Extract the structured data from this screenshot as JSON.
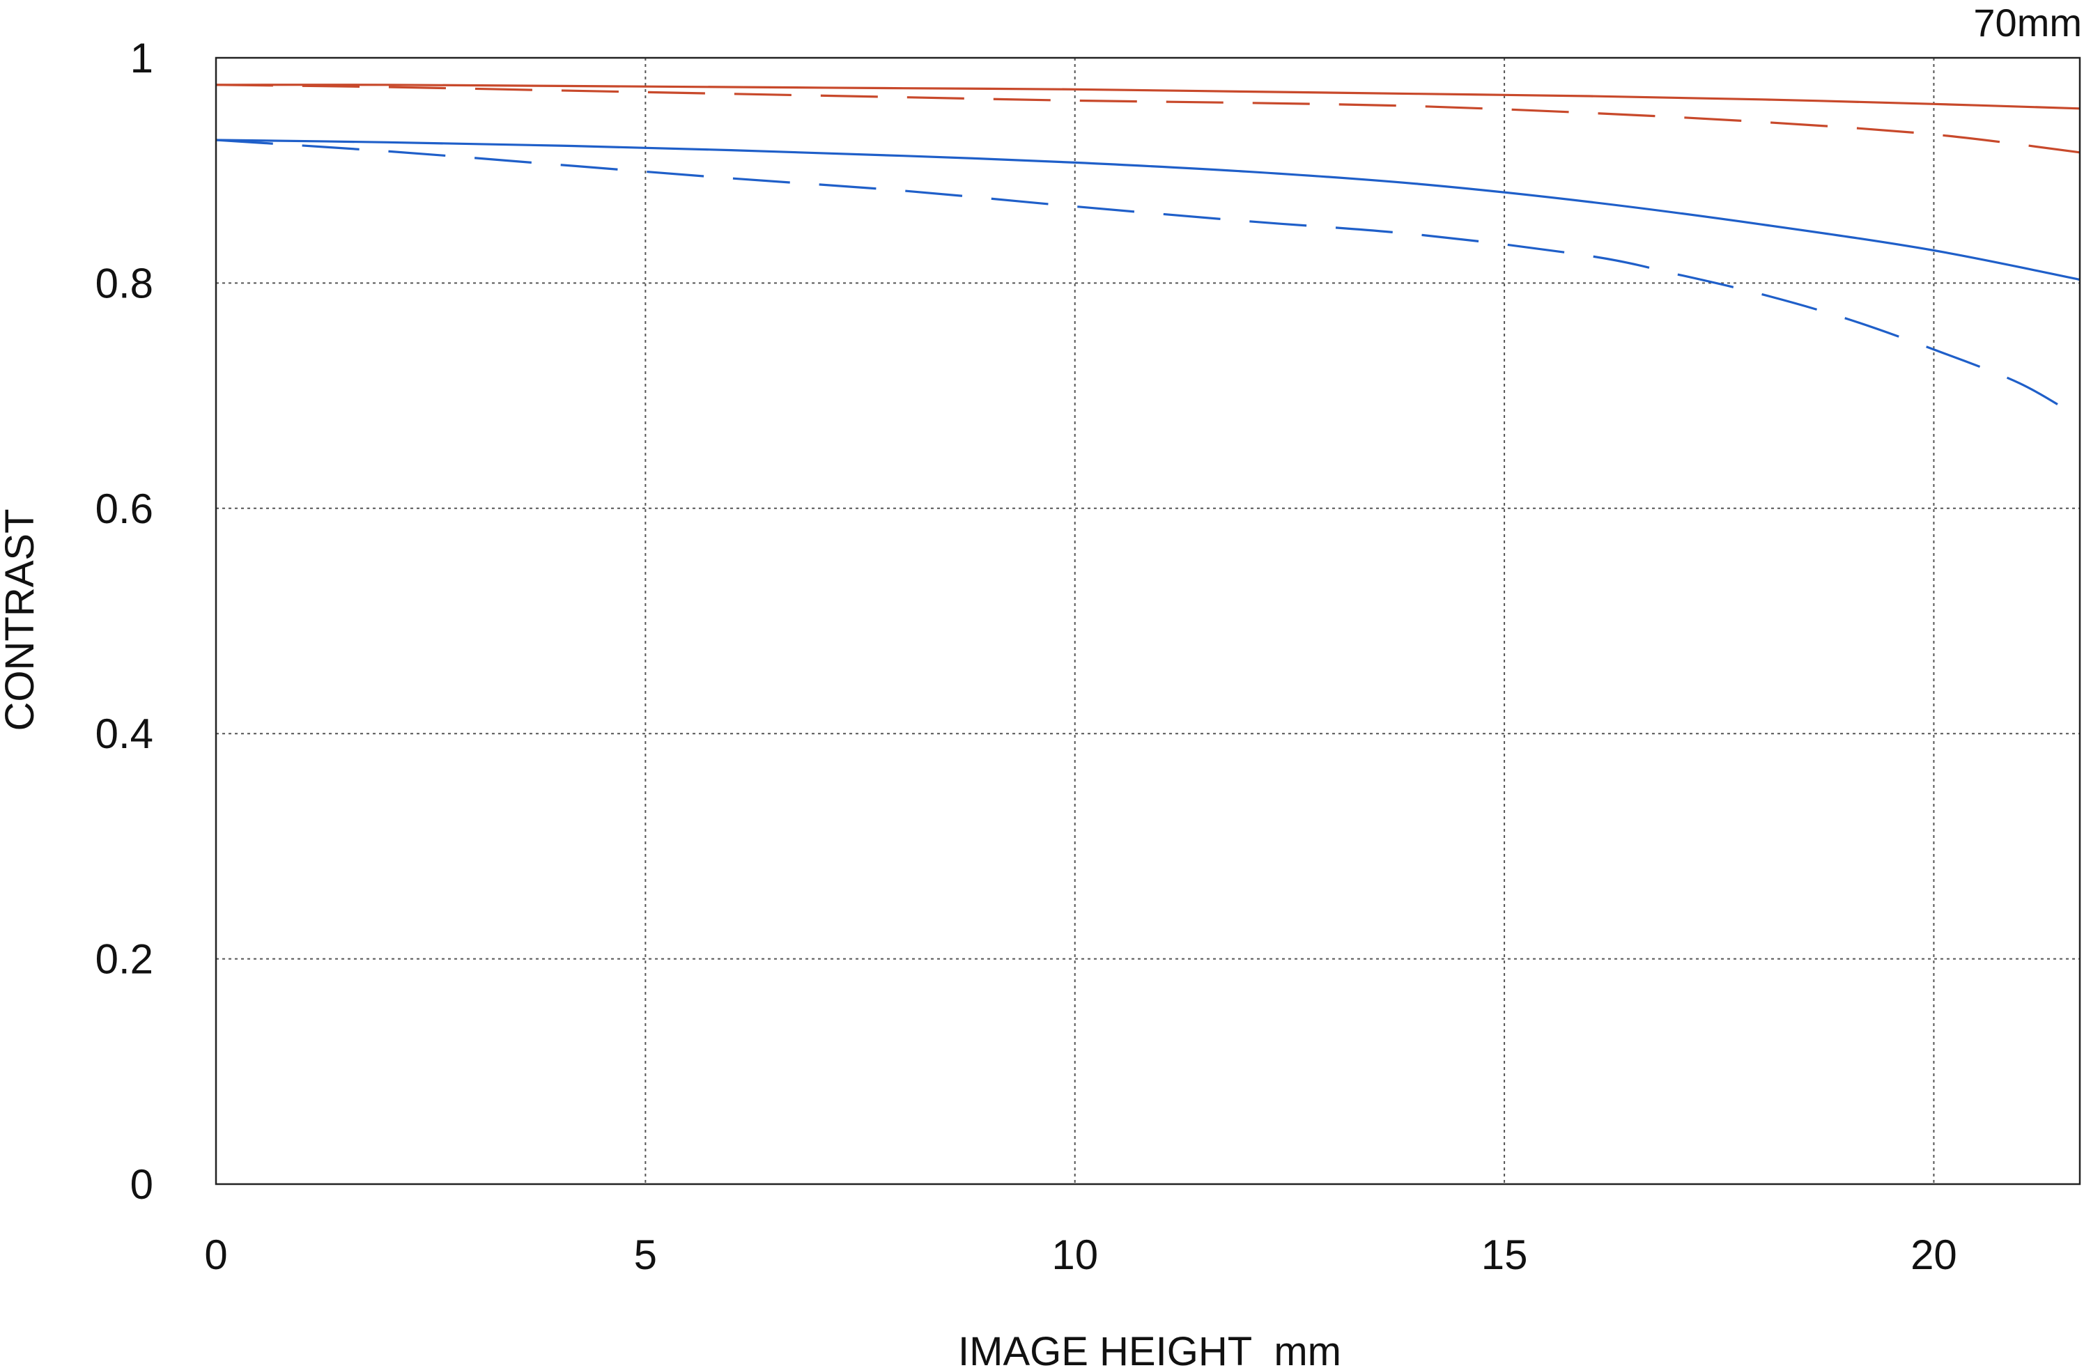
{
  "chart_data": {
    "type": "line",
    "corner_label": "70mm",
    "xlabel": "IMAGE HEIGHT  mm",
    "ylabel": "CONTRAST",
    "xlim": [
      0,
      21.7
    ],
    "ylim": [
      0,
      1
    ],
    "xticks": [
      0,
      5,
      10,
      15,
      20
    ],
    "xtick_labels": [
      "0",
      "5",
      "10",
      "15",
      "20"
    ],
    "yticks": [
      0,
      0.2,
      0.4,
      0.6,
      0.8,
      1
    ],
    "ytick_labels": [
      "0",
      "0.2",
      "0.4",
      "0.6",
      "0.8",
      "1"
    ],
    "grid": "dotted",
    "colors": {
      "red": "#c8492b",
      "blue": "#1f5fc9",
      "axis": "#222222",
      "grid": "#555555"
    },
    "series": [
      {
        "color": "#c8492b",
        "style": "solid",
        "x": [
          0,
          2,
          4,
          6,
          8,
          10,
          12,
          14,
          16,
          18,
          20,
          21.7
        ],
        "y": [
          0.976,
          0.976,
          0.975,
          0.974,
          0.973,
          0.972,
          0.97,
          0.968,
          0.966,
          0.963,
          0.959,
          0.955
        ]
      },
      {
        "color": "#c8492b",
        "style": "dashed",
        "x": [
          0,
          2,
          4,
          6,
          8,
          10,
          12,
          14,
          16,
          18,
          20,
          21.7
        ],
        "y": [
          0.976,
          0.974,
          0.971,
          0.968,
          0.965,
          0.962,
          0.96,
          0.957,
          0.951,
          0.943,
          0.932,
          0.916
        ]
      },
      {
        "color": "#1f5fc9",
        "style": "solid",
        "x": [
          0,
          2,
          4,
          6,
          8,
          10,
          12,
          14,
          16,
          18,
          20,
          21.7
        ],
        "y": [
          0.927,
          0.925,
          0.922,
          0.918,
          0.913,
          0.907,
          0.899,
          0.888,
          0.872,
          0.852,
          0.829,
          0.803
        ]
      },
      {
        "color": "#1f5fc9",
        "style": "dashed",
        "x": [
          0,
          2,
          4,
          6,
          8,
          10,
          12,
          14,
          16,
          17,
          18,
          19,
          20,
          21,
          21.7
        ],
        "y": [
          0.927,
          0.917,
          0.905,
          0.893,
          0.882,
          0.868,
          0.855,
          0.843,
          0.824,
          0.808,
          0.79,
          0.768,
          0.741,
          0.711,
          0.68
        ]
      }
    ]
  }
}
